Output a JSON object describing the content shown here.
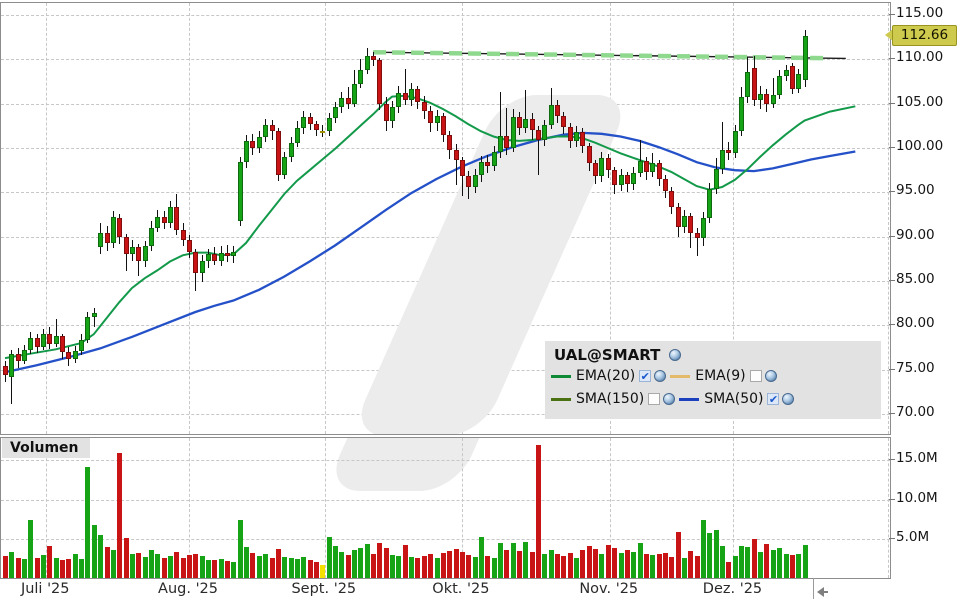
{
  "legend": {
    "title": "UAL@SMART",
    "items": [
      {
        "label": "EMA(20)",
        "color": "#0e8a35",
        "checked": true
      },
      {
        "label": "EMA(9)",
        "color": "#e5b96a",
        "checked": false
      },
      {
        "label": "SMA(150)",
        "color": "#4a7213",
        "checked": false
      },
      {
        "label": "SMA(50)",
        "color": "#1c41be",
        "checked": true
      }
    ]
  },
  "price_axis": {
    "tick_values": [
      115,
      110,
      105,
      100,
      95,
      90,
      85,
      80,
      75,
      70
    ],
    "tick_labels": [
      "115.00",
      "110.00",
      "105.00",
      "100.00",
      "95.00",
      "90.00",
      "85.00",
      "80.00",
      "75.00",
      "70.00"
    ],
    "current_price": 112.66,
    "current_price_label": "112.66",
    "tag_color": "#cdca4d"
  },
  "volume_axis": {
    "panel_label": "Volumen",
    "tick_values_millions": [
      15,
      10,
      5
    ],
    "tick_labels": [
      "15.0M",
      "10.0M",
      "5.0M"
    ]
  },
  "x_axis": {
    "months": [
      {
        "label": "Juli '25",
        "index": 6.5
      },
      {
        "label": "Aug. '25",
        "index": 29.0
      },
      {
        "label": "Sept. '25",
        "index": 50.4
      },
      {
        "label": "Okt. '25",
        "index": 72.0
      },
      {
        "label": "Nov. '25",
        "index": 95.3
      },
      {
        "label": "Dez. '25",
        "index": 114.8
      }
    ],
    "extra_gridline_index": 139.1
  },
  "colors": {
    "up": "#16a316",
    "down": "#c81414",
    "doji": "#f5e000",
    "ema20": "#13994a",
    "sma50": "#2450c8",
    "trend": "#8fd98f",
    "trend_core": "#1c1c1c",
    "grid": "#c7c7c7",
    "watermark": "#ececec",
    "legend_bg": "#e2e2e2",
    "axis_text": "#151515"
  },
  "chart_data": {
    "type": "candlestick+volume",
    "symbol": "UAL@SMART",
    "ylim": [
      70,
      115
    ],
    "volume_ylim_millions": [
      0,
      17.8
    ],
    "candles": [
      [
        75.4,
        76.0,
        73.6,
        74.4,
        2.9
      ],
      [
        74.2,
        77.2,
        71.1,
        76.8,
        3.4
      ],
      [
        76.8,
        77.5,
        75.2,
        76.0,
        2.6
      ],
      [
        76.0,
        77.8,
        75.6,
        77.2,
        2.5
      ],
      [
        77.2,
        79.2,
        76.8,
        78.6,
        7.4
      ],
      [
        78.6,
        79.0,
        76.9,
        77.6,
        2.7
      ],
      [
        77.6,
        79.6,
        77.2,
        79.0,
        3.0
      ],
      [
        79.0,
        79.8,
        77.3,
        77.9,
        4.2
      ],
      [
        77.9,
        80.7,
        77.5,
        78.8,
        2.6
      ],
      [
        78.8,
        79.0,
        76.2,
        77.0,
        2.4
      ],
      [
        77.0,
        77.6,
        75.4,
        76.2,
        2.5
      ],
      [
        76.2,
        77.7,
        75.7,
        77.1,
        3.2
      ],
      [
        77.1,
        79.0,
        76.6,
        78.4,
        2.5
      ],
      [
        78.4,
        81.5,
        78.0,
        80.9,
        14.1
      ],
      [
        80.9,
        82.0,
        79.8,
        81.4,
        6.8
      ],
      [
        88.8,
        91.5,
        88.0,
        90.4,
        5.5
      ],
      [
        90.4,
        91.2,
        88.4,
        89.3,
        4.0
      ],
      [
        89.3,
        92.9,
        88.7,
        92.2,
        3.6
      ],
      [
        92.1,
        92.6,
        89.2,
        90.0,
        15.9
      ],
      [
        90.0,
        90.3,
        86.1,
        88.0,
        5.2
      ],
      [
        88.0,
        89.6,
        87.2,
        88.8,
        3.1
      ],
      [
        88.8,
        89.2,
        85.6,
        87.2,
        3.3
      ],
      [
        87.2,
        89.5,
        86.6,
        88.9,
        2.8
      ],
      [
        88.9,
        91.8,
        88.4,
        91.0,
        3.6
      ],
      [
        91.0,
        93.0,
        90.5,
        92.2,
        3.2
      ],
      [
        92.2,
        92.9,
        90.9,
        91.5,
        2.7
      ],
      [
        91.5,
        94.0,
        91.0,
        93.3,
        2.9
      ],
      [
        93.3,
        94.8,
        90.2,
        90.8,
        3.4
      ],
      [
        90.8,
        91.5,
        88.9,
        89.6,
        2.6
      ],
      [
        89.6,
        90.2,
        87.6,
        88.3,
        3.0
      ],
      [
        88.3,
        88.6,
        83.9,
        85.9,
        3.1
      ],
      [
        85.9,
        87.9,
        84.9,
        87.3,
        2.9
      ],
      [
        87.3,
        88.6,
        86.5,
        88.0,
        2.4
      ],
      [
        88.0,
        88.8,
        86.8,
        87.3,
        2.4
      ],
      [
        87.3,
        88.9,
        86.7,
        88.2,
        2.5
      ],
      [
        88.2,
        89.1,
        87.1,
        87.8,
        2.3
      ],
      [
        87.8,
        89.0,
        87.0,
        88.3,
        2.2
      ],
      [
        91.8,
        99.0,
        91.2,
        98.4,
        7.4
      ],
      [
        98.4,
        101.5,
        97.7,
        100.8,
        4.0
      ],
      [
        100.8,
        101.6,
        99.2,
        100.0,
        3.3
      ],
      [
        100.0,
        101.9,
        99.4,
        101.2,
        2.9
      ],
      [
        101.2,
        103.3,
        100.7,
        102.6,
        3.1
      ],
      [
        102.6,
        103.2,
        100.9,
        101.9,
        2.7
      ],
      [
        101.9,
        102.3,
        96.3,
        97.0,
        3.8
      ],
      [
        97.0,
        99.6,
        96.5,
        99.0,
        2.8
      ],
      [
        99.0,
        101.2,
        98.4,
        100.6,
        2.6
      ],
      [
        100.6,
        103.0,
        100.1,
        102.2,
        2.5
      ],
      [
        102.2,
        104.2,
        101.6,
        103.5,
        2.8
      ],
      [
        103.5,
        104.0,
        102.0,
        102.7,
        2.4
      ],
      [
        102.7,
        103.1,
        101.3,
        102.0,
        2.2
      ],
      [
        101.9,
        102.6,
        101.2,
        101.9,
        1.8
      ],
      [
        101.9,
        104.0,
        101.4,
        103.4,
        5.3
      ],
      [
        103.4,
        105.2,
        102.8,
        104.6,
        4.2
      ],
      [
        104.6,
        106.3,
        104.0,
        105.6,
        3.4
      ],
      [
        105.6,
        106.9,
        104.4,
        105.0,
        3.0
      ],
      [
        105.0,
        108.8,
        104.6,
        107.2,
        3.7
      ],
      [
        107.2,
        110.0,
        106.8,
        108.8,
        3.9
      ],
      [
        108.8,
        111.3,
        108.3,
        110.4,
        4.4
      ],
      [
        110.4,
        110.8,
        109.2,
        109.9,
        3.2
      ],
      [
        109.9,
        110.2,
        104.3,
        105.0,
        4.5
      ],
      [
        105.0,
        105.8,
        101.9,
        103.0,
        3.9
      ],
      [
        103.0,
        105.3,
        102.2,
        104.6,
        3.0
      ],
      [
        104.6,
        107.0,
        103.9,
        106.2,
        2.9
      ],
      [
        106.2,
        108.9,
        104.8,
        105.4,
        4.3
      ],
      [
        105.4,
        107.3,
        104.7,
        106.6,
        2.8
      ],
      [
        106.6,
        107.0,
        104.4,
        105.2,
        2.7
      ],
      [
        105.2,
        105.9,
        103.3,
        104.2,
        2.9
      ],
      [
        104.2,
        104.7,
        101.8,
        102.8,
        3.1
      ],
      [
        102.8,
        104.3,
        101.9,
        103.6,
        2.6
      ],
      [
        103.6,
        104.0,
        100.7,
        101.5,
        3.3
      ],
      [
        101.5,
        101.9,
        98.8,
        99.8,
        3.5
      ],
      [
        99.8,
        100.4,
        95.8,
        98.7,
        3.8
      ],
      [
        98.7,
        99.0,
        94.6,
        96.8,
        3.4
      ],
      [
        96.8,
        97.4,
        94.3,
        95.6,
        3.0
      ],
      [
        95.6,
        97.6,
        94.9,
        96.9,
        2.8
      ],
      [
        96.9,
        99.1,
        96.2,
        98.4,
        5.3
      ],
      [
        98.4,
        99.2,
        97.2,
        98.0,
        2.9
      ],
      [
        98.0,
        100.2,
        97.4,
        99.5,
        2.7
      ],
      [
        99.5,
        106.3,
        98.9,
        101.3,
        4.6
      ],
      [
        101.3,
        104.5,
        99.2,
        100.0,
        3.6
      ],
      [
        100.0,
        104.4,
        99.5,
        103.5,
        4.5
      ],
      [
        103.5,
        104.1,
        101.5,
        102.3,
        3.5
      ],
      [
        102.3,
        106.5,
        101.7,
        103.3,
        4.7
      ],
      [
        103.3,
        104.0,
        100.9,
        102.0,
        3.4
      ],
      [
        102.0,
        102.5,
        96.9,
        100.9,
        16.9
      ],
      [
        100.9,
        103.2,
        100.2,
        102.6,
        3.2
      ],
      [
        102.6,
        106.8,
        102.1,
        104.8,
        3.6
      ],
      [
        104.8,
        105.4,
        102.8,
        103.6,
        3.1
      ],
      [
        103.6,
        104.1,
        101.6,
        102.4,
        2.9
      ],
      [
        102.4,
        102.8,
        100.0,
        100.8,
        3.3
      ],
      [
        100.8,
        102.5,
        100.1,
        101.8,
        2.7
      ],
      [
        101.8,
        102.2,
        99.4,
        100.2,
        3.6
      ],
      [
        100.2,
        100.6,
        97.4,
        98.3,
        4.1
      ],
      [
        98.3,
        98.7,
        95.9,
        96.8,
        3.8
      ],
      [
        96.8,
        99.6,
        96.2,
        98.9,
        3.2
      ],
      [
        98.9,
        99.3,
        96.6,
        97.5,
        4.3
      ],
      [
        97.5,
        97.9,
        94.8,
        95.8,
        3.9
      ],
      [
        95.8,
        97.6,
        95.1,
        96.9,
        3.3
      ],
      [
        96.9,
        97.3,
        95.0,
        95.9,
        3.7
      ],
      [
        95.9,
        97.9,
        95.3,
        97.2,
        3.4
      ],
      [
        97.2,
        100.9,
        96.7,
        98.5,
        4.5
      ],
      [
        98.5,
        99.0,
        96.4,
        97.3,
        3.2
      ],
      [
        97.3,
        99.4,
        96.7,
        98.3,
        3.0
      ],
      [
        98.3,
        98.7,
        95.7,
        96.5,
        3.1
      ],
      [
        96.5,
        96.9,
        94.4,
        95.2,
        3.3
      ],
      [
        95.2,
        95.6,
        92.6,
        93.4,
        2.8
      ],
      [
        93.4,
        93.8,
        90.0,
        91.1,
        5.9
      ],
      [
        91.1,
        93.0,
        90.4,
        92.3,
        2.6
      ],
      [
        92.3,
        92.7,
        88.7,
        90.4,
        3.5
      ],
      [
        90.4,
        91.0,
        87.8,
        89.8,
        2.9
      ],
      [
        89.8,
        92.8,
        88.9,
        92.1,
        7.4
      ],
      [
        92.1,
        96.0,
        91.5,
        95.4,
        5.8
      ],
      [
        95.4,
        98.9,
        94.8,
        97.6,
        6.2
      ],
      [
        97.6,
        102.9,
        97.1,
        99.8,
        4.1
      ],
      [
        99.8,
        100.7,
        98.7,
        99.4,
        2.1
      ],
      [
        99.4,
        102.6,
        98.9,
        101.9,
        2.9
      ],
      [
        101.9,
        106.9,
        101.3,
        105.7,
        4.2
      ],
      [
        105.7,
        110.3,
        105.1,
        108.6,
        4.0
      ],
      [
        109.0,
        110.4,
        104.7,
        105.4,
        5.0
      ],
      [
        105.4,
        107.0,
        104.4,
        106.1,
        3.4
      ],
      [
        106.1,
        106.6,
        104.1,
        105.0,
        4.4
      ],
      [
        105.0,
        107.9,
        104.5,
        106.0,
        3.6
      ],
      [
        106.0,
        108.8,
        105.5,
        108.1,
        3.9
      ],
      [
        108.1,
        109.4,
        107.5,
        108.8,
        3.1
      ],
      [
        109.2,
        109.6,
        106.1,
        106.7,
        3.0
      ],
      [
        106.7,
        108.9,
        106.2,
        108.3,
        3.2
      ],
      [
        107.7,
        113.3,
        106.9,
        112.66,
        4.3
      ]
    ],
    "doji_yellow_indices": [
      50
    ],
    "ema20_points": [
      [
        0,
        76.3
      ],
      [
        4,
        76.8
      ],
      [
        8,
        77.3
      ],
      [
        12,
        78.0
      ],
      [
        14,
        79.0
      ],
      [
        16,
        80.8
      ],
      [
        18,
        82.6
      ],
      [
        20,
        84.2
      ],
      [
        22,
        85.3
      ],
      [
        24,
        86.2
      ],
      [
        26,
        87.2
      ],
      [
        28,
        87.9
      ],
      [
        30,
        88.2
      ],
      [
        32,
        88.2
      ],
      [
        34,
        87.9
      ],
      [
        36,
        88.0
      ],
      [
        38,
        89.3
      ],
      [
        40,
        91.2
      ],
      [
        42,
        93.0
      ],
      [
        44,
        94.8
      ],
      [
        46,
        96.3
      ],
      [
        48,
        97.5
      ],
      [
        50,
        98.7
      ],
      [
        52,
        99.9
      ],
      [
        54,
        101.2
      ],
      [
        56,
        102.5
      ],
      [
        58,
        103.8
      ],
      [
        60,
        105.2
      ],
      [
        61,
        105.8
      ],
      [
        63,
        105.9
      ],
      [
        65,
        105.6
      ],
      [
        67,
        105.1
      ],
      [
        69,
        104.4
      ],
      [
        71,
        103.6
      ],
      [
        73,
        102.7
      ],
      [
        75,
        101.9
      ],
      [
        77,
        101.3
      ],
      [
        79,
        100.9
      ],
      [
        81,
        100.8
      ],
      [
        83,
        100.9
      ],
      [
        85,
        101.1
      ],
      [
        87,
        101.3
      ],
      [
        89,
        101.3
      ],
      [
        91,
        101.1
      ],
      [
        93,
        100.6
      ],
      [
        95,
        100.0
      ],
      [
        97,
        99.4
      ],
      [
        99,
        98.9
      ],
      [
        101,
        98.4
      ],
      [
        103,
        97.9
      ],
      [
        105,
        97.3
      ],
      [
        107,
        96.5
      ],
      [
        109,
        95.7
      ],
      [
        111,
        95.3
      ],
      [
        113,
        95.6
      ],
      [
        115,
        96.4
      ],
      [
        117,
        97.6
      ],
      [
        119,
        99.0
      ],
      [
        121,
        100.3
      ],
      [
        123,
        101.5
      ],
      [
        125,
        102.6
      ],
      [
        126,
        103.1
      ],
      [
        130,
        104.1
      ],
      [
        134,
        104.7
      ]
    ],
    "sma50_points": [
      [
        0,
        74.7
      ],
      [
        5,
        75.5
      ],
      [
        10,
        76.4
      ],
      [
        15,
        77.4
      ],
      [
        20,
        78.7
      ],
      [
        25,
        80.1
      ],
      [
        30,
        81.5
      ],
      [
        33,
        82.2
      ],
      [
        36,
        82.8
      ],
      [
        40,
        84.0
      ],
      [
        44,
        85.5
      ],
      [
        48,
        87.2
      ],
      [
        52,
        89.0
      ],
      [
        56,
        91.0
      ],
      [
        60,
        93.0
      ],
      [
        64,
        94.9
      ],
      [
        68,
        96.5
      ],
      [
        72,
        97.9
      ],
      [
        76,
        99.1
      ],
      [
        80,
        100.1
      ],
      [
        84,
        100.9
      ],
      [
        88,
        101.5
      ],
      [
        91,
        101.7
      ],
      [
        94,
        101.6
      ],
      [
        97,
        101.3
      ],
      [
        100,
        100.8
      ],
      [
        103,
        100.1
      ],
      [
        106,
        99.3
      ],
      [
        109,
        98.4
      ],
      [
        112,
        97.8
      ],
      [
        115,
        97.5
      ],
      [
        118,
        97.4
      ],
      [
        121,
        97.7
      ],
      [
        124,
        98.2
      ],
      [
        127,
        98.7
      ],
      [
        130,
        99.1
      ],
      [
        134,
        99.6
      ]
    ],
    "trendline": {
      "start_index": 58.0,
      "start_price": 110.8,
      "end_index": 132.5,
      "end_price": 110.1,
      "dash_end_index": 129.5
    }
  }
}
